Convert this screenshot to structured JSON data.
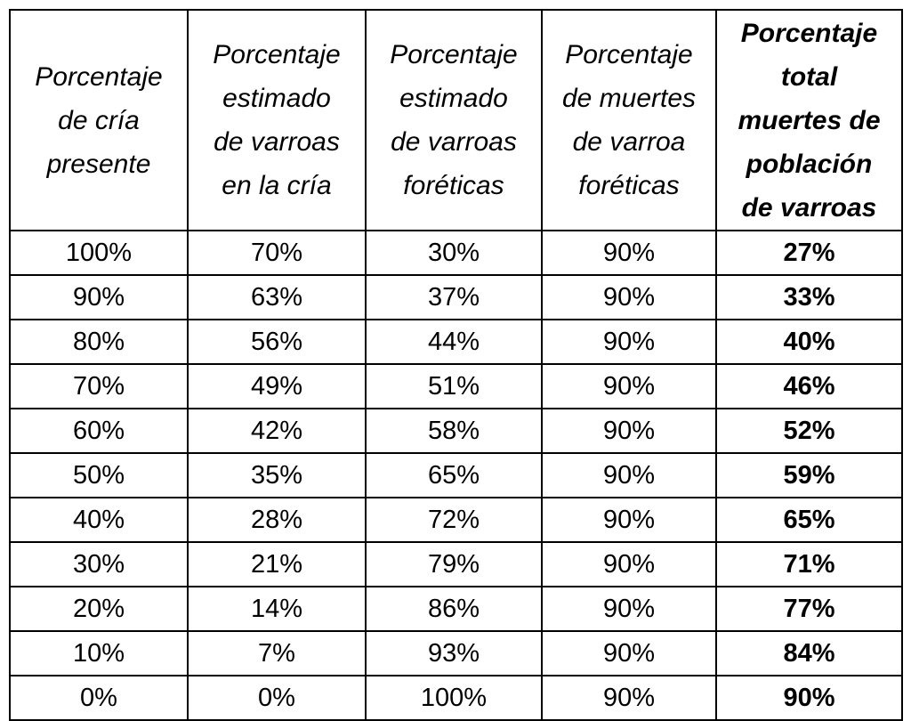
{
  "table": {
    "headers": [
      "Porcentaje\nde cría\npresente",
      "Porcentaje\nestimado\nde varroas\nen la cría",
      "Porcentaje\nestimado\nde varroas\nforéticas",
      "Porcentaje\nde muertes\nde varroa\nforéticas",
      "Porcentaje\ntotal\nmuertes de\npoblación\nde varroas"
    ],
    "rows": [
      [
        "100%",
        "70%",
        "30%",
        "90%",
        "27%"
      ],
      [
        "90%",
        "63%",
        "37%",
        "90%",
        "33%"
      ],
      [
        "80%",
        "56%",
        "44%",
        "90%",
        "40%"
      ],
      [
        "70%",
        "49%",
        "51%",
        "90%",
        "46%"
      ],
      [
        "60%",
        "42%",
        "58%",
        "90%",
        "52%"
      ],
      [
        "50%",
        "35%",
        "65%",
        "90%",
        "59%"
      ],
      [
        "40%",
        "28%",
        "72%",
        "90%",
        "65%"
      ],
      [
        "30%",
        "21%",
        "79%",
        "90%",
        "71%"
      ],
      [
        "20%",
        "14%",
        "86%",
        "90%",
        "77%"
      ],
      [
        "10%",
        "7%",
        "93%",
        "90%",
        "84%"
      ],
      [
        "0%",
        "0%",
        "100%",
        "90%",
        "90%"
      ]
    ]
  }
}
